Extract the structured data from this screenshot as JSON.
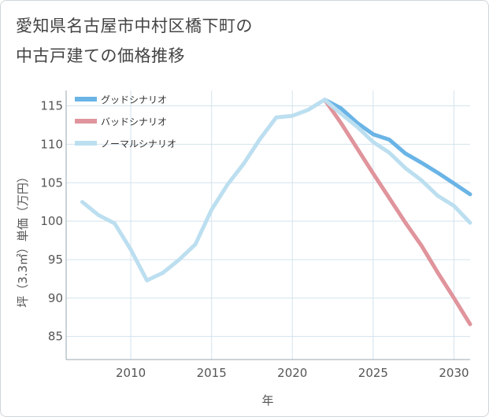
{
  "title_line1": "愛知県名古屋市中村区橋下町の",
  "title_line2": "中古戸建ての価格推移",
  "chart_data": {
    "type": "line",
    "xlabel": "年",
    "ylabel": "坪（3.3㎡）単価（万円）",
    "xlim": [
      2006,
      2031
    ],
    "ylim": [
      82,
      117
    ],
    "xticks": [
      2010,
      2015,
      2020,
      2025,
      2030
    ],
    "yticks": [
      85,
      90,
      95,
      100,
      105,
      110,
      115
    ],
    "grid": true,
    "legend_position": "top-left",
    "series": [
      {
        "name": "グッドシナリオ",
        "color": "#6ab4e6",
        "x": [
          2022,
          2023,
          2024,
          2025,
          2026,
          2027,
          2028,
          2029,
          2030,
          2031
        ],
        "values": [
          115.8,
          114.7,
          112.8,
          111.3,
          110.6,
          108.8,
          107.6,
          106.3,
          104.9,
          103.5
        ]
      },
      {
        "name": "バッドシナリオ",
        "color": "#e0949c",
        "x": [
          2022,
          2023,
          2024,
          2025,
          2026,
          2027,
          2028,
          2029,
          2030,
          2031
        ],
        "values": [
          115.8,
          112.8,
          109.5,
          106.2,
          103.0,
          99.8,
          96.8,
          93.3,
          90.0,
          86.6
        ]
      },
      {
        "name": "ノーマルシナリオ",
        "color": "#bcdff0",
        "x": [
          2007,
          2008,
          2009,
          2010,
          2011,
          2012,
          2013,
          2014,
          2015,
          2016,
          2017,
          2018,
          2019,
          2020,
          2021,
          2022,
          2023,
          2024,
          2025,
          2026,
          2027,
          2028,
          2029,
          2030,
          2031
        ],
        "values": [
          102.5,
          100.8,
          99.7,
          96.3,
          92.3,
          93.3,
          95.0,
          97.0,
          101.5,
          104.8,
          107.5,
          110.7,
          113.5,
          113.7,
          114.5,
          115.8,
          114.0,
          112.3,
          110.3,
          108.9,
          106.9,
          105.3,
          103.3,
          102.0,
          99.8
        ]
      }
    ]
  }
}
